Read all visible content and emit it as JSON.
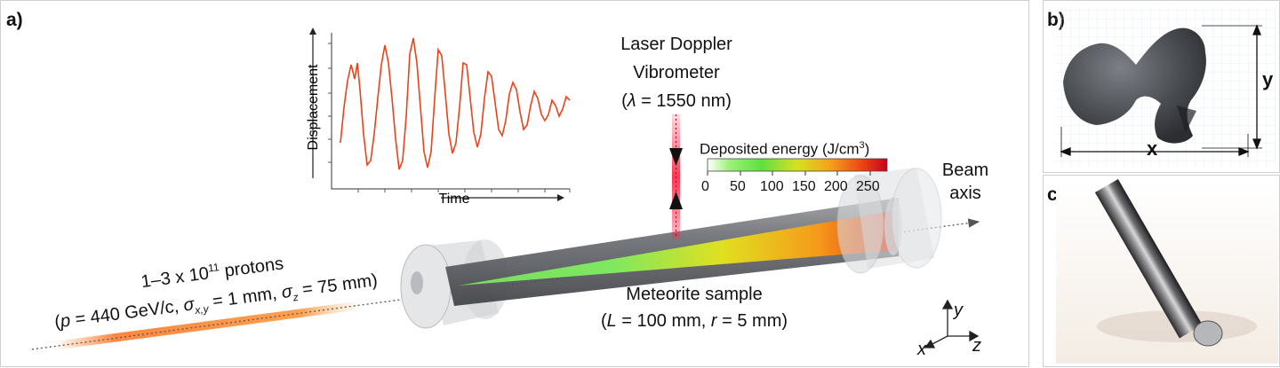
{
  "panels": {
    "a": {
      "letter": "a)",
      "inset_plot": {
        "xlabel": "Time",
        "ylabel": "Displacement"
      },
      "ldv": {
        "line1": "Laser Doppler",
        "line2": "Vibrometer",
        "lambda_sym": "λ",
        "lambda_val": " = 1550 nm"
      },
      "colorbar": {
        "title": "Deposited energy (J/cm",
        "title_sup": "3",
        "title_end": ")",
        "ticks": [
          "0",
          "50",
          "100",
          "150",
          "200",
          "250"
        ]
      },
      "beam_axis": {
        "line1": "Beam",
        "line2": "axis"
      },
      "protons": {
        "line1_a": "1–3 x 10",
        "line1_sup": "11",
        "line1_b": " protons",
        "p_sym": "p",
        "p_val": " = 440 GeV/c, ",
        "sxy_sym": "σ",
        "sxy_sub": "x,y",
        "sxy_val": " = 1 mm, ",
        "sz_sym": "σ",
        "sz_sub": "z",
        "sz_val": " = 75 mm)"
      },
      "sample": {
        "line1": "Meteorite sample",
        "L_sym": "L",
        "L_val": " = 100 mm, ",
        "r_sym": "r",
        "r_val": " = 5 mm)"
      },
      "axes": {
        "x": "x",
        "y": "y",
        "z": "z"
      }
    },
    "b": {
      "letter": "b)",
      "dim_x": "x",
      "dim_y": "y"
    },
    "c": {
      "letter": "c)"
    }
  },
  "colors": {
    "signal": "#e8431c",
    "laser": "#e8002a",
    "beam_glow": "#ff7a1a"
  }
}
